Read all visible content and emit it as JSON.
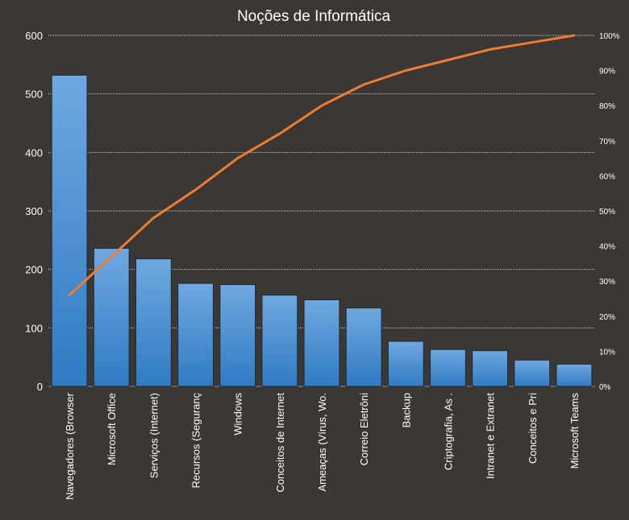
{
  "chart_data": {
    "type": "bar",
    "title": "Noções de Informática",
    "categories": [
      "Navegadores (Browser",
      "Microsoft Office",
      "Serviços (Internet)",
      "Recursos (Seguranç",
      "Windows",
      "Conceitos de Internet",
      "Ameaças (Vírus, Wo.",
      "Correio Eletrôni",
      "Backup",
      "Criptografia, As .",
      "Intranet e Extranet",
      "Conceitos e Pri",
      "Microsoft Teams"
    ],
    "series": [
      {
        "type": "bar",
        "axis": "left",
        "values": [
          532,
          236,
          218,
          176,
          174,
          156,
          148,
          134,
          77,
          63,
          61,
          45,
          38
        ]
      },
      {
        "type": "line",
        "axis": "right",
        "values": [
          0.26,
          0.37,
          0.48,
          0.56,
          0.65,
          0.72,
          0.8,
          0.86,
          0.9,
          0.93,
          0.96,
          0.98,
          1.0
        ]
      }
    ],
    "y_left": {
      "ylim": [
        0,
        600
      ],
      "ticks": [
        "0",
        "100",
        "200",
        "300",
        "400",
        "500",
        "600"
      ]
    },
    "y_right": {
      "ylim": [
        0,
        1
      ],
      "ticks": [
        "0%",
        "10%",
        "20%",
        "30%",
        "40%",
        "50%",
        "60%",
        "70%",
        "80%",
        "90%",
        "100%"
      ]
    },
    "grid": true,
    "legend": "none",
    "colors": {
      "background": "#3a3735",
      "bar_fill_top": "#6fa8e0",
      "bar_fill_bottom": "#2f7bc4",
      "bar_stroke": "#1c2b3a",
      "line": "#ed7d31",
      "text": "#ffffff",
      "grid": "#d0d0d0"
    }
  }
}
